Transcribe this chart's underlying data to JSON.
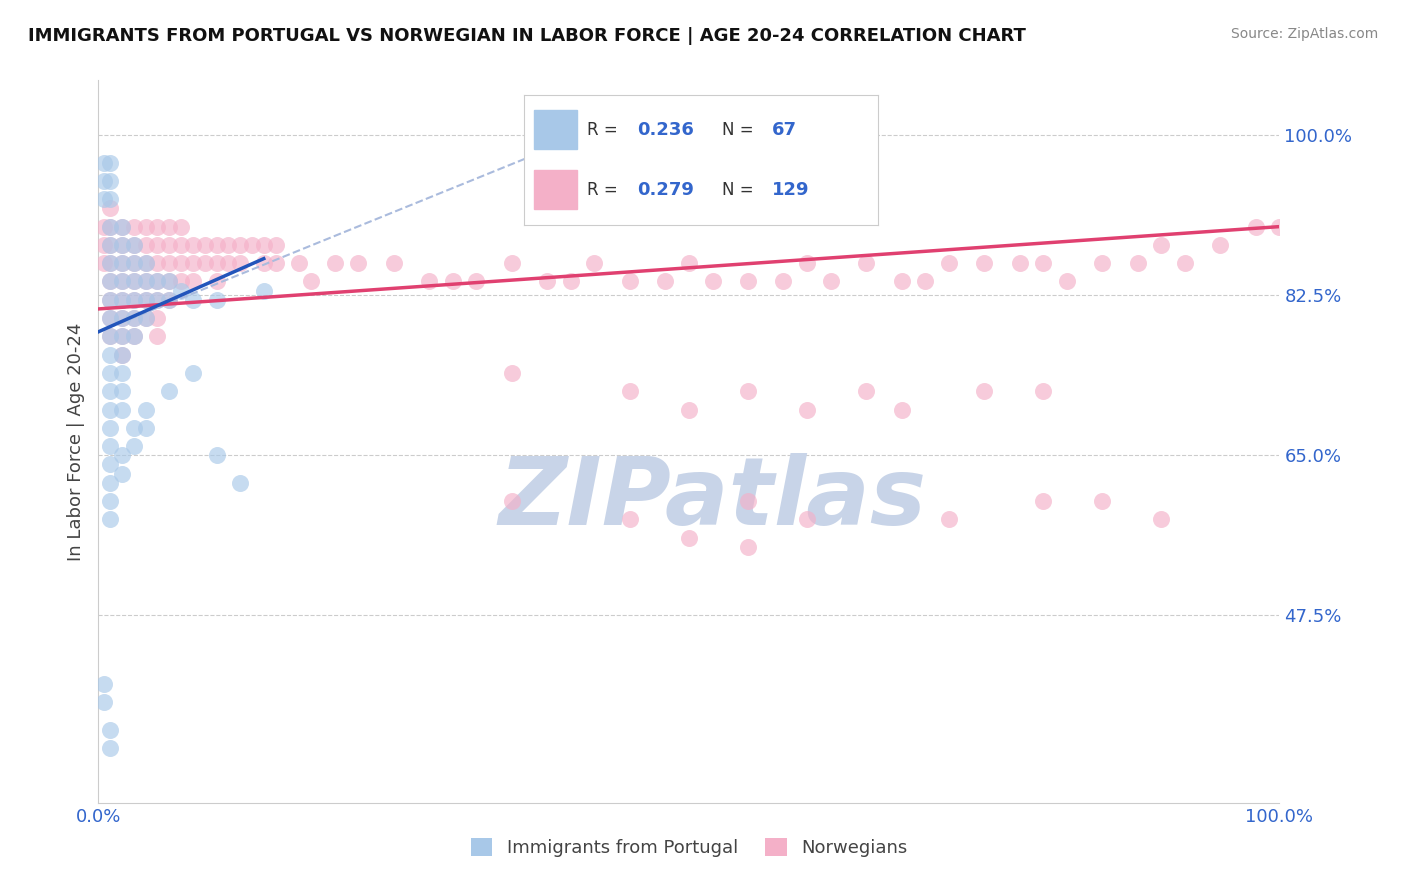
{
  "title": "IMMIGRANTS FROM PORTUGAL VS NORWEGIAN IN LABOR FORCE | AGE 20-24 CORRELATION CHART",
  "source": "Source: ZipAtlas.com",
  "ylabel": "In Labor Force | Age 20-24",
  "legend_blue_r": "0.236",
  "legend_blue_n": "67",
  "legend_pink_r": "0.279",
  "legend_pink_n": "129",
  "blue_color": "#a8c8e8",
  "pink_color": "#f4b0c8",
  "blue_line_color": "#2255bb",
  "pink_line_color": "#e04070",
  "dash_line_color": "#aabbdd",
  "xmin": 0.0,
  "xmax": 1.0,
  "ymin": 0.27,
  "ymax": 1.06,
  "ytick_vals": [
    0.475,
    0.65,
    0.825,
    1.0
  ],
  "ytick_labels": [
    "47.5%",
    "65.0%",
    "82.5%",
    "100.0%"
  ],
  "xtick_vals": [
    0.0,
    1.0
  ],
  "xtick_labels": [
    "0.0%",
    "100.0%"
  ],
  "watermark": "ZIPatlas",
  "watermark_color": "#c8d4e8",
  "blue_scatter": [
    [
      0.005,
      0.97
    ],
    [
      0.005,
      0.95
    ],
    [
      0.005,
      0.93
    ],
    [
      0.01,
      0.97
    ],
    [
      0.01,
      0.95
    ],
    [
      0.01,
      0.93
    ],
    [
      0.01,
      0.9
    ],
    [
      0.01,
      0.88
    ],
    [
      0.01,
      0.86
    ],
    [
      0.01,
      0.84
    ],
    [
      0.01,
      0.82
    ],
    [
      0.01,
      0.8
    ],
    [
      0.01,
      0.78
    ],
    [
      0.01,
      0.76
    ],
    [
      0.01,
      0.74
    ],
    [
      0.01,
      0.72
    ],
    [
      0.01,
      0.7
    ],
    [
      0.01,
      0.68
    ],
    [
      0.01,
      0.66
    ],
    [
      0.01,
      0.64
    ],
    [
      0.01,
      0.62
    ],
    [
      0.01,
      0.6
    ],
    [
      0.01,
      0.58
    ],
    [
      0.02,
      0.9
    ],
    [
      0.02,
      0.88
    ],
    [
      0.02,
      0.86
    ],
    [
      0.02,
      0.84
    ],
    [
      0.02,
      0.82
    ],
    [
      0.02,
      0.8
    ],
    [
      0.02,
      0.78
    ],
    [
      0.02,
      0.76
    ],
    [
      0.02,
      0.74
    ],
    [
      0.02,
      0.72
    ],
    [
      0.02,
      0.7
    ],
    [
      0.03,
      0.88
    ],
    [
      0.03,
      0.86
    ],
    [
      0.03,
      0.84
    ],
    [
      0.03,
      0.82
    ],
    [
      0.03,
      0.8
    ],
    [
      0.03,
      0.78
    ],
    [
      0.04,
      0.86
    ],
    [
      0.04,
      0.84
    ],
    [
      0.04,
      0.82
    ],
    [
      0.04,
      0.8
    ],
    [
      0.05,
      0.84
    ],
    [
      0.05,
      0.82
    ],
    [
      0.06,
      0.84
    ],
    [
      0.06,
      0.82
    ],
    [
      0.07,
      0.83
    ],
    [
      0.08,
      0.82
    ],
    [
      0.1,
      0.82
    ],
    [
      0.14,
      0.83
    ],
    [
      0.02,
      0.65
    ],
    [
      0.02,
      0.63
    ],
    [
      0.03,
      0.68
    ],
    [
      0.03,
      0.66
    ],
    [
      0.04,
      0.7
    ],
    [
      0.04,
      0.68
    ],
    [
      0.06,
      0.72
    ],
    [
      0.08,
      0.74
    ],
    [
      0.1,
      0.65
    ],
    [
      0.12,
      0.62
    ],
    [
      0.005,
      0.4
    ],
    [
      0.005,
      0.38
    ],
    [
      0.01,
      0.35
    ],
    [
      0.01,
      0.33
    ]
  ],
  "pink_scatter": [
    [
      0.005,
      0.9
    ],
    [
      0.005,
      0.88
    ],
    [
      0.005,
      0.86
    ],
    [
      0.01,
      0.92
    ],
    [
      0.01,
      0.9
    ],
    [
      0.01,
      0.88
    ],
    [
      0.01,
      0.86
    ],
    [
      0.01,
      0.84
    ],
    [
      0.01,
      0.82
    ],
    [
      0.01,
      0.8
    ],
    [
      0.01,
      0.78
    ],
    [
      0.02,
      0.9
    ],
    [
      0.02,
      0.88
    ],
    [
      0.02,
      0.86
    ],
    [
      0.02,
      0.84
    ],
    [
      0.02,
      0.82
    ],
    [
      0.02,
      0.8
    ],
    [
      0.02,
      0.78
    ],
    [
      0.02,
      0.76
    ],
    [
      0.03,
      0.9
    ],
    [
      0.03,
      0.88
    ],
    [
      0.03,
      0.86
    ],
    [
      0.03,
      0.84
    ],
    [
      0.03,
      0.82
    ],
    [
      0.03,
      0.8
    ],
    [
      0.03,
      0.78
    ],
    [
      0.04,
      0.9
    ],
    [
      0.04,
      0.88
    ],
    [
      0.04,
      0.86
    ],
    [
      0.04,
      0.84
    ],
    [
      0.04,
      0.82
    ],
    [
      0.04,
      0.8
    ],
    [
      0.05,
      0.9
    ],
    [
      0.05,
      0.88
    ],
    [
      0.05,
      0.86
    ],
    [
      0.05,
      0.84
    ],
    [
      0.05,
      0.82
    ],
    [
      0.05,
      0.8
    ],
    [
      0.05,
      0.78
    ],
    [
      0.06,
      0.9
    ],
    [
      0.06,
      0.88
    ],
    [
      0.06,
      0.86
    ],
    [
      0.06,
      0.84
    ],
    [
      0.06,
      0.82
    ],
    [
      0.07,
      0.9
    ],
    [
      0.07,
      0.88
    ],
    [
      0.07,
      0.86
    ],
    [
      0.07,
      0.84
    ],
    [
      0.08,
      0.88
    ],
    [
      0.08,
      0.86
    ],
    [
      0.08,
      0.84
    ],
    [
      0.09,
      0.88
    ],
    [
      0.09,
      0.86
    ],
    [
      0.1,
      0.88
    ],
    [
      0.1,
      0.86
    ],
    [
      0.1,
      0.84
    ],
    [
      0.11,
      0.88
    ],
    [
      0.11,
      0.86
    ],
    [
      0.12,
      0.88
    ],
    [
      0.12,
      0.86
    ],
    [
      0.13,
      0.88
    ],
    [
      0.14,
      0.88
    ],
    [
      0.14,
      0.86
    ],
    [
      0.15,
      0.88
    ],
    [
      0.15,
      0.86
    ],
    [
      0.17,
      0.86
    ],
    [
      0.18,
      0.84
    ],
    [
      0.2,
      0.86
    ],
    [
      0.22,
      0.86
    ],
    [
      0.25,
      0.86
    ],
    [
      0.28,
      0.84
    ],
    [
      0.3,
      0.84
    ],
    [
      0.32,
      0.84
    ],
    [
      0.35,
      0.86
    ],
    [
      0.38,
      0.84
    ],
    [
      0.4,
      0.84
    ],
    [
      0.42,
      0.86
    ],
    [
      0.45,
      0.84
    ],
    [
      0.48,
      0.84
    ],
    [
      0.5,
      0.86
    ],
    [
      0.52,
      0.84
    ],
    [
      0.55,
      0.84
    ],
    [
      0.58,
      0.84
    ],
    [
      0.6,
      0.86
    ],
    [
      0.62,
      0.84
    ],
    [
      0.65,
      0.86
    ],
    [
      0.68,
      0.84
    ],
    [
      0.7,
      0.84
    ],
    [
      0.72,
      0.86
    ],
    [
      0.75,
      0.86
    ],
    [
      0.78,
      0.86
    ],
    [
      0.8,
      0.86
    ],
    [
      0.82,
      0.84
    ],
    [
      0.85,
      0.86
    ],
    [
      0.88,
      0.86
    ],
    [
      0.9,
      0.88
    ],
    [
      0.92,
      0.86
    ],
    [
      0.95,
      0.88
    ],
    [
      0.98,
      0.9
    ],
    [
      1.0,
      0.9
    ],
    [
      0.35,
      0.74
    ],
    [
      0.45,
      0.72
    ],
    [
      0.5,
      0.7
    ],
    [
      0.55,
      0.72
    ],
    [
      0.6,
      0.7
    ],
    [
      0.65,
      0.72
    ],
    [
      0.68,
      0.7
    ],
    [
      0.55,
      0.6
    ],
    [
      0.6,
      0.58
    ],
    [
      0.75,
      0.72
    ],
    [
      0.8,
      0.6
    ],
    [
      0.85,
      0.6
    ],
    [
      0.9,
      0.58
    ],
    [
      0.72,
      0.58
    ],
    [
      0.8,
      0.72
    ],
    [
      0.35,
      0.6
    ],
    [
      0.45,
      0.58
    ],
    [
      0.5,
      0.56
    ],
    [
      0.55,
      0.55
    ]
  ],
  "blue_line": [
    [
      0.0,
      0.785
    ],
    [
      0.14,
      0.865
    ]
  ],
  "pink_line": [
    [
      0.0,
      0.81
    ],
    [
      1.0,
      0.9
    ]
  ],
  "dash_line": [
    [
      0.0,
      0.785
    ],
    [
      0.42,
      1.005
    ]
  ]
}
